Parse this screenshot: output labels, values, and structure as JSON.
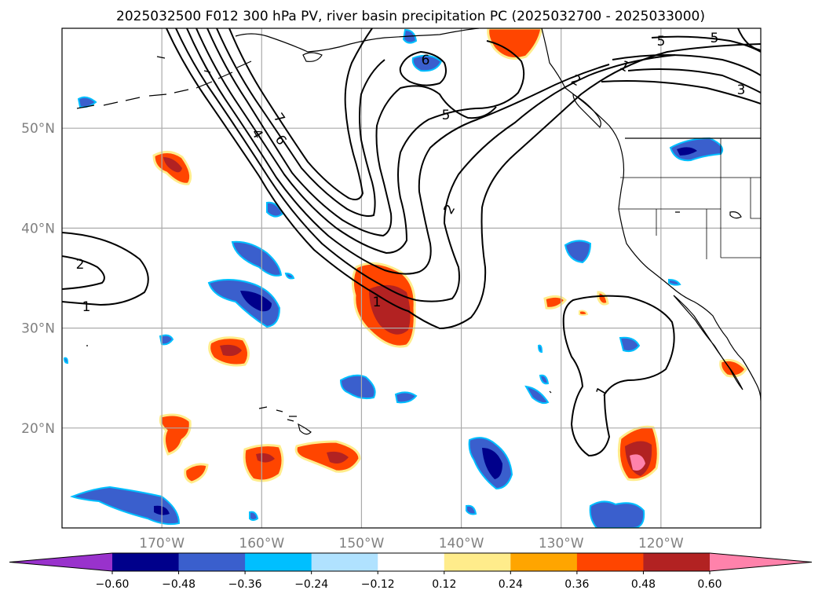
{
  "title": "2025032500 F012 300 hPa PV, river basin precipitation PC (2025032700 - 2025033000)",
  "map": {
    "projection": "PlateCarree",
    "lon_range": [
      -180,
      -110
    ],
    "lat_range": [
      10,
      60
    ],
    "grid": true,
    "lon_ticks": [
      {
        "value": -170,
        "label": "170°W"
      },
      {
        "value": -160,
        "label": "160°W"
      },
      {
        "value": -150,
        "label": "150°W"
      },
      {
        "value": -140,
        "label": "140°W"
      },
      {
        "value": -130,
        "label": "130°W"
      },
      {
        "value": -120,
        "label": "120°W"
      }
    ],
    "lat_ticks": [
      {
        "value": 20,
        "label": "20°N"
      },
      {
        "value": 30,
        "label": "30°N"
      },
      {
        "value": 40,
        "label": "40°N"
      },
      {
        "value": 50,
        "label": "50°N"
      }
    ],
    "coastline_color": "#000000"
  },
  "pv_contours": {
    "color": "#000000",
    "labels": [
      "1",
      "2",
      "4",
      "6",
      "7",
      "5",
      "6",
      "2",
      "1",
      "1",
      "1",
      "2",
      "5",
      "5",
      "3"
    ]
  },
  "colorbar": {
    "orientation": "horizontal",
    "extend": "both",
    "colors": [
      "#9932cc",
      "#00008b",
      "#3a5fcd",
      "#00bfff",
      "#b0e2ff",
      "#ffffff",
      "#ffec8b",
      "#ffa500",
      "#ff4500",
      "#b22222",
      "#ff82ab"
    ],
    "tick_labels": [
      "−0.60",
      "−0.48",
      "−0.36",
      "−0.24",
      "−0.12",
      "0.12",
      "0.24",
      "0.36",
      "0.48",
      "0.60"
    ]
  }
}
